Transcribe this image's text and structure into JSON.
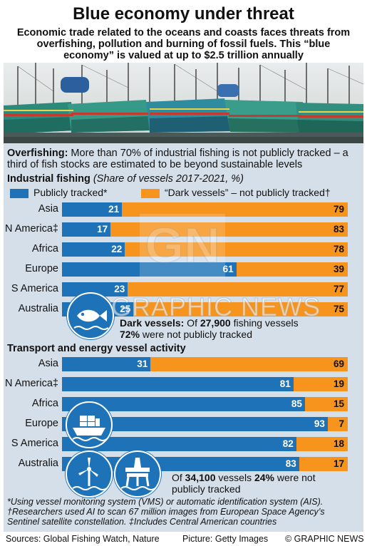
{
  "title": "Blue economy under threat",
  "subtitle": "Economic trade related to the oceans and coasts faces threats from overfishing, pollution and burning of fossil fuels. This “blue economy” is valued at up to $2.5 trillion annually",
  "intro": {
    "bold": "Overfishing:",
    "text": " More than 70% of industrial fishing is not publicly tracked – a third of fish stocks are estimated to be beyond sustainable levels"
  },
  "colors": {
    "tracked": "#1e73b8",
    "dark": "#f7941d",
    "panel": "#d4dfe9"
  },
  "legend": {
    "tracked": "Publicly tracked*",
    "dark": "“Dark vessels” – not publicly tracked†"
  },
  "chart_data": [
    {
      "type": "bar",
      "stacked": true,
      "orientation": "horizontal",
      "title": "Industrial fishing",
      "subtitle": "(Share of vessels 2017-2021, %)",
      "categories": [
        "Asia",
        "N America‡",
        "Africa",
        "Europe",
        "S America",
        "Australia"
      ],
      "series": [
        {
          "name": "Publicly tracked*",
          "values": [
            21,
            17,
            22,
            61,
            23,
            25
          ]
        },
        {
          "name": "“Dark vessels” – not publicly tracked†",
          "values": [
            79,
            83,
            78,
            39,
            77,
            75
          ]
        }
      ],
      "xlim": [
        0,
        100
      ]
    },
    {
      "type": "bar",
      "stacked": true,
      "orientation": "horizontal",
      "title": "Transport and energy vessel activity",
      "categories": [
        "Asia",
        "N America‡",
        "Africa",
        "Europe",
        "S America",
        "Australia"
      ],
      "series": [
        {
          "name": "Publicly tracked*",
          "values": [
            31,
            81,
            85,
            93,
            82,
            83
          ]
        },
        {
          "name": "“Dark vessels” – not publicly tracked†",
          "values": [
            69,
            19,
            15,
            7,
            18,
            17
          ]
        }
      ],
      "xlim": [
        0,
        100
      ]
    }
  ],
  "note1": {
    "b1": "Dark vessels:",
    "t1": " Of ",
    "b2": "27,900",
    "t2": " fishing vessels",
    "b3": "72%",
    "t3": " were not publicly tracked"
  },
  "note2": {
    "t1": "Of ",
    "b1": "34,100",
    "t2": " vessels ",
    "b2": "24%",
    "t3": " were not",
    "t4": "publicly tracked"
  },
  "footnotes": [
    "*Using vessel monitoring system (VMS) or automatic identification system (AIS).",
    "†Researchers used AI to scan 67 million images from European Space Agency’s",
    "Sentinel satellite constellation. ‡Includes Central American countries"
  ],
  "sources": "Sources: Global Fishing Watch, Nature",
  "picture": "Picture: Getty Images",
  "brand": "© GRAPHIC NEWS",
  "watermark": {
    "logo": "GN",
    "text": "GRAPHIC NEWS"
  },
  "icons": [
    "fish-icon",
    "cargo-ship-icon",
    "wind-turbine-icon",
    "oil-rig-icon"
  ]
}
